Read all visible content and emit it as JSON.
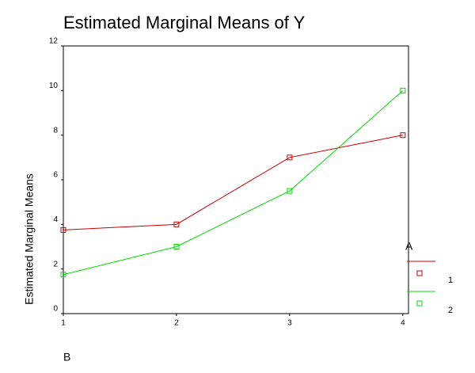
{
  "chart_data": {
    "type": "line",
    "title": "Estimated Marginal Means of Y",
    "x_label": "B",
    "y_label": "Estimated Marginal Means",
    "legend_title": "A",
    "x": [
      1,
      2,
      3,
      4
    ],
    "series": [
      {
        "name": "1",
        "color": "#cc0000",
        "values": [
          3.75,
          4,
          7,
          8
        ]
      },
      {
        "name": "2",
        "color": "#00dd00",
        "values": [
          1.75,
          3,
          5.5,
          10
        ]
      }
    ],
    "xlim": [
      1,
      4.05
    ],
    "xticks": [
      1,
      2,
      3,
      4
    ],
    "ylim": [
      0,
      12
    ],
    "yticks": [
      0,
      2,
      4,
      6,
      8,
      10,
      12
    ],
    "grid": false,
    "legend": "right"
  }
}
